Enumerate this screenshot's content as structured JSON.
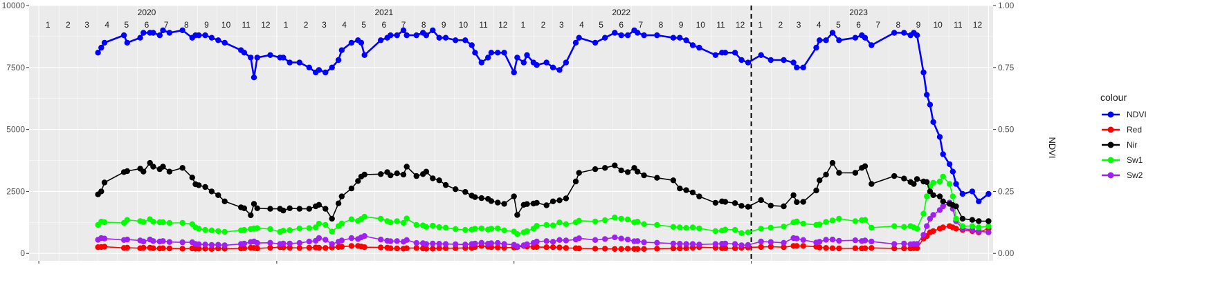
{
  "chart_data": {
    "type": "line",
    "title": "",
    "xlabel": "",
    "ylabel": "",
    "y2label": "NDVI",
    "ylim": [
      -300,
      10000
    ],
    "yticks": [
      0,
      2500,
      5000,
      7500,
      10000
    ],
    "ytick_labels": [
      "0",
      "2500",
      "5000",
      "7500",
      "10000"
    ],
    "y2lim": [
      -0.03,
      1.0
    ],
    "y2ticks": [
      0.0,
      0.25,
      0.5,
      0.75,
      1.0
    ],
    "y2tick_labels": [
      "0.00",
      "0.25",
      "0.50",
      "0.75",
      "1.00"
    ],
    "xlim": [
      "2019-12-17",
      "2024-01-08"
    ],
    "grid": true,
    "background": "#EBEBEB",
    "event_marker": {
      "date": "2023-01-01",
      "style": "dashed"
    },
    "year_labels": [
      {
        "label": "2020",
        "date": "2020-06-15"
      },
      {
        "label": "2021",
        "date": "2021-06-15"
      },
      {
        "label": "2022",
        "date": "2022-06-15"
      },
      {
        "label": "2023",
        "date": "2023-06-15"
      }
    ],
    "month_labels": [
      {
        "label": "1",
        "date": "2020-01-15"
      },
      {
        "label": "2",
        "date": "2020-02-15"
      },
      {
        "label": "3",
        "date": "2020-03-15"
      },
      {
        "label": "4",
        "date": "2020-04-15"
      },
      {
        "label": "5",
        "date": "2020-05-15"
      },
      {
        "label": "6",
        "date": "2020-06-15"
      },
      {
        "label": "7",
        "date": "2020-07-15"
      },
      {
        "label": "8",
        "date": "2020-08-15"
      },
      {
        "label": "9",
        "date": "2020-09-15"
      },
      {
        "label": "10",
        "date": "2020-10-15"
      },
      {
        "label": "11",
        "date": "2020-11-15"
      },
      {
        "label": "12",
        "date": "2020-12-15"
      },
      {
        "label": "1",
        "date": "2021-01-15"
      },
      {
        "label": "2",
        "date": "2021-02-15"
      },
      {
        "label": "3",
        "date": "2021-03-15"
      },
      {
        "label": "4",
        "date": "2021-04-15"
      },
      {
        "label": "5",
        "date": "2021-05-15"
      },
      {
        "label": "6",
        "date": "2021-06-15"
      },
      {
        "label": "7",
        "date": "2021-07-15"
      },
      {
        "label": "8",
        "date": "2021-08-15"
      },
      {
        "label": "9",
        "date": "2021-09-15"
      },
      {
        "label": "10",
        "date": "2021-10-15"
      },
      {
        "label": "11",
        "date": "2021-11-15"
      },
      {
        "label": "12",
        "date": "2021-12-15"
      },
      {
        "label": "1",
        "date": "2022-01-15"
      },
      {
        "label": "2",
        "date": "2022-02-15"
      },
      {
        "label": "3",
        "date": "2022-03-15"
      },
      {
        "label": "4",
        "date": "2022-04-15"
      },
      {
        "label": "5",
        "date": "2022-05-15"
      },
      {
        "label": "6",
        "date": "2022-06-15"
      },
      {
        "label": "7",
        "date": "2022-07-15"
      },
      {
        "label": "8",
        "date": "2022-08-15"
      },
      {
        "label": "9",
        "date": "2022-09-15"
      },
      {
        "label": "10",
        "date": "2022-10-15"
      },
      {
        "label": "11",
        "date": "2022-11-15"
      },
      {
        "label": "12",
        "date": "2022-12-15"
      },
      {
        "label": "1",
        "date": "2023-01-15"
      },
      {
        "label": "2",
        "date": "2023-02-15"
      },
      {
        "label": "3",
        "date": "2023-03-15"
      },
      {
        "label": "4",
        "date": "2023-04-15"
      },
      {
        "label": "5",
        "date": "2023-05-15"
      },
      {
        "label": "6",
        "date": "2023-06-15"
      },
      {
        "label": "7",
        "date": "2023-07-15"
      },
      {
        "label": "8",
        "date": "2023-08-15"
      },
      {
        "label": "9",
        "date": "2023-09-15"
      },
      {
        "label": "10",
        "date": "2023-10-15"
      },
      {
        "label": "11",
        "date": "2023-11-15"
      },
      {
        "label": "12",
        "date": "2023-12-15"
      }
    ],
    "legend": {
      "title": "colour",
      "position": "right",
      "entries": [
        {
          "name": "NDVI",
          "color": "#0000FF"
        },
        {
          "name": "Red",
          "color": "#FF0000"
        },
        {
          "name": "Nir",
          "color": "#000000"
        },
        {
          "name": "Sw1",
          "color": "#00FF00"
        },
        {
          "name": "Sw2",
          "color": "#A020F0"
        }
      ]
    },
    "x": [
      "2020-04-01",
      "2020-04-06",
      "2020-04-11",
      "2020-05-11",
      "2020-05-16",
      "2020-06-05",
      "2020-06-10",
      "2020-06-20",
      "2020-06-25",
      "2020-07-05",
      "2020-07-10",
      "2020-07-20",
      "2020-08-09",
      "2020-08-24",
      "2020-08-29",
      "2020-09-03",
      "2020-09-13",
      "2020-09-23",
      "2020-10-03",
      "2020-10-13",
      "2020-11-07",
      "2020-11-12",
      "2020-11-22",
      "2020-11-27",
      "2020-12-02",
      "2020-12-22",
      "2021-01-06",
      "2021-01-11",
      "2021-01-21",
      "2021-02-05",
      "2021-02-20",
      "2021-03-02",
      "2021-03-07",
      "2021-03-17",
      "2021-03-27",
      "2021-04-06",
      "2021-04-11",
      "2021-04-26",
      "2021-05-06",
      "2021-05-11",
      "2021-05-16",
      "2021-06-10",
      "2021-06-20",
      "2021-06-25",
      "2021-07-05",
      "2021-07-15",
      "2021-07-20",
      "2021-08-04",
      "2021-08-14",
      "2021-08-19",
      "2021-08-29",
      "2021-09-08",
      "2021-09-18",
      "2021-10-03",
      "2021-10-18",
      "2021-10-28",
      "2021-11-02",
      "2021-11-12",
      "2021-11-22",
      "2021-11-27",
      "2021-12-07",
      "2021-12-17",
      "2022-01-01",
      "2022-01-06",
      "2022-01-16",
      "2022-01-21",
      "2022-01-31",
      "2022-02-05",
      "2022-02-20",
      "2022-03-02",
      "2022-03-12",
      "2022-03-22",
      "2022-04-06",
      "2022-04-11",
      "2022-05-06",
      "2022-05-21",
      "2022-06-05",
      "2022-06-15",
      "2022-06-25",
      "2022-07-05",
      "2022-07-10",
      "2022-07-20",
      "2022-08-09",
      "2022-09-03",
      "2022-09-13",
      "2022-09-23",
      "2022-10-03",
      "2022-10-13",
      "2022-11-07",
      "2022-11-17",
      "2022-11-22",
      "2022-12-07",
      "2022-12-17",
      "2022-12-27",
      "2023-01-16",
      "2023-01-31",
      "2023-02-20",
      "2023-03-07",
      "2023-03-12",
      "2023-03-22",
      "2023-04-11",
      "2023-04-16",
      "2023-04-26",
      "2023-05-06",
      "2023-05-16",
      "2023-06-10",
      "2023-06-20",
      "2023-06-25",
      "2023-07-05",
      "2023-08-09",
      "2023-08-24",
      "2023-09-03",
      "2023-09-08",
      "2023-09-13",
      "2023-09-23",
      "2023-09-28",
      "2023-10-03",
      "2023-10-08",
      "2023-10-18",
      "2023-10-23",
      "2023-11-02",
      "2023-11-07",
      "2023-11-12",
      "2023-11-22",
      "2023-12-07",
      "2023-12-17",
      "2024-01-01"
    ],
    "series": [
      {
        "name": "NDVI",
        "axis": "right",
        "color": "#0000FF",
        "values": [
          0.81,
          0.83,
          0.85,
          0.88,
          0.85,
          0.87,
          0.89,
          0.89,
          0.89,
          0.88,
          0.9,
          0.89,
          0.9,
          0.87,
          0.88,
          0.88,
          0.88,
          0.87,
          0.86,
          0.85,
          0.82,
          0.81,
          0.79,
          0.71,
          0.79,
          0.8,
          0.79,
          0.79,
          0.77,
          0.77,
          0.75,
          0.73,
          0.74,
          0.73,
          0.75,
          0.78,
          0.82,
          0.85,
          0.86,
          0.85,
          0.8,
          0.86,
          0.87,
          0.88,
          0.88,
          0.9,
          0.88,
          0.88,
          0.89,
          0.88,
          0.9,
          0.87,
          0.87,
          0.86,
          0.86,
          0.84,
          0.81,
          0.77,
          0.79,
          0.81,
          0.81,
          0.81,
          0.73,
          0.79,
          0.77,
          0.8,
          0.77,
          0.76,
          0.77,
          0.75,
          0.74,
          0.77,
          0.85,
          0.87,
          0.85,
          0.87,
          0.89,
          0.88,
          0.88,
          0.9,
          0.89,
          0.88,
          0.88,
          0.87,
          0.87,
          0.86,
          0.84,
          0.83,
          0.8,
          0.81,
          0.81,
          0.81,
          0.78,
          0.77,
          0.8,
          0.78,
          0.78,
          0.77,
          0.75,
          0.75,
          0.83,
          0.86,
          0.86,
          0.89,
          0.86,
          0.87,
          0.88,
          0.87,
          0.84,
          0.89,
          0.89,
          0.88,
          0.89,
          0.88,
          0.73,
          0.64,
          0.6,
          0.53,
          0.47,
          0.4,
          0.36,
          0.33,
          0.28,
          0.24,
          0.25,
          0.21,
          0.24
        ]
      },
      {
        "name": "Red",
        "axis": "left",
        "color": "#FF0000",
        "values": [
          250,
          260,
          270,
          220,
          230,
          210,
          230,
          230,
          210,
          200,
          210,
          200,
          190,
          200,
          190,
          190,
          190,
          180,
          200,
          190,
          200,
          210,
          230,
          220,
          200,
          230,
          250,
          240,
          230,
          220,
          230,
          240,
          230,
          220,
          240,
          260,
          270,
          300,
          300,
          280,
          250,
          240,
          230,
          210,
          200,
          190,
          210,
          220,
          200,
          190,
          190,
          210,
          210,
          210,
          220,
          220,
          260,
          300,
          270,
          250,
          240,
          230,
          240,
          250,
          300,
          280,
          260,
          260,
          250,
          250,
          240,
          220,
          210,
          200,
          190,
          190,
          180,
          180,
          190,
          180,
          180,
          180,
          190,
          200,
          200,
          210,
          230,
          250,
          230,
          210,
          210,
          210,
          230,
          240,
          260,
          270,
          250,
          300,
          300,
          300,
          270,
          240,
          220,
          210,
          200,
          210,
          200,
          210,
          220,
          200,
          200,
          200,
          210,
          210,
          600,
          700,
          850,
          900,
          1000,
          1050,
          1100,
          1050,
          1000,
          950,
          900,
          850,
          1000
        ]
      },
      {
        "name": "Nir",
        "axis": "left",
        "color": "#000000",
        "values": [
          2380,
          2500,
          2860,
          3280,
          3320,
          3420,
          3300,
          3650,
          3500,
          3400,
          3500,
          3300,
          3450,
          3060,
          2790,
          2750,
          2680,
          2500,
          2350,
          2100,
          1860,
          1820,
          1540,
          2000,
          1820,
          1800,
          1800,
          1730,
          1820,
          1800,
          1800,
          1900,
          1960,
          1800,
          1400,
          2020,
          2300,
          2620,
          2920,
          3100,
          3180,
          3200,
          3280,
          3150,
          3230,
          3180,
          3500,
          3120,
          3200,
          3300,
          3030,
          2950,
          2760,
          2590,
          2480,
          2330,
          2270,
          2230,
          2200,
          2110,
          2050,
          2000,
          2300,
          1550,
          1960,
          1990,
          2010,
          2040,
          1940,
          2100,
          2140,
          2220,
          2900,
          3250,
          3400,
          3450,
          3550,
          3350,
          3280,
          3450,
          3300,
          3150,
          3050,
          2950,
          2620,
          2550,
          2460,
          2300,
          2040,
          2100,
          2080,
          2030,
          1920,
          1880,
          2150,
          1930,
          1900,
          2350,
          2070,
          2080,
          2540,
          2950,
          3180,
          3650,
          3250,
          3250,
          3450,
          3520,
          2800,
          3120,
          3020,
          2880,
          2800,
          3000,
          2900,
          2880,
          2500,
          2350,
          2300,
          2100,
          2000,
          1950,
          1900,
          1400,
          1350,
          1300,
          1300
        ]
      },
      {
        "name": "Sw1",
        "axis": "left",
        "color": "#00FF00",
        "values": [
          1150,
          1280,
          1260,
          1230,
          1350,
          1300,
          1270,
          1380,
          1280,
          1260,
          1260,
          1230,
          1230,
          1180,
          1050,
          1000,
          950,
          930,
          900,
          870,
          930,
          950,
          980,
          1010,
          1020,
          980,
          870,
          920,
          940,
          1010,
          1020,
          1050,
          1200,
          1150,
          880,
          1100,
          1210,
          1380,
          1310,
          1390,
          1480,
          1400,
          1300,
          1250,
          1300,
          1230,
          1410,
          1150,
          1130,
          1070,
          1120,
          1060,
          1040,
          980,
          950,
          960,
          1000,
          1010,
          960,
          1000,
          1010,
          930,
          880,
          780,
          850,
          900,
          1000,
          1110,
          1150,
          1130,
          1250,
          1180,
          1250,
          1320,
          1290,
          1340,
          1450,
          1400,
          1370,
          1250,
          1280,
          1180,
          1150,
          1070,
          1050,
          1030,
          1050,
          1010,
          900,
          920,
          960,
          950,
          820,
          850,
          1000,
          1040,
          1080,
          1250,
          1290,
          1200,
          1150,
          1170,
          1270,
          1330,
          1400,
          1300,
          1340,
          1350,
          1040,
          1100,
          1070,
          1100,
          1050,
          1000,
          1600,
          2300,
          2700,
          2850,
          2900,
          3100,
          2800,
          2300,
          1400,
          1100,
          1100,
          1050,
          1100
        ]
      },
      {
        "name": "Sw2",
        "axis": "left",
        "color": "#A020F0",
        "values": [
          550,
          620,
          600,
          540,
          560,
          520,
          480,
          560,
          500,
          480,
          500,
          460,
          450,
          450,
          380,
          370,
          360,
          340,
          350,
          330,
          380,
          400,
          460,
          480,
          420,
          430,
          380,
          400,
          400,
          420,
          480,
          510,
          620,
          550,
          380,
          470,
          520,
          620,
          580,
          650,
          700,
          560,
          510,
          490,
          500,
          470,
          540,
          420,
          410,
          380,
          400,
          390,
          380,
          370,
          360,
          380,
          400,
          430,
          390,
          410,
          420,
          380,
          350,
          290,
          330,
          370,
          420,
          480,
          500,
          470,
          540,
          520,
          560,
          610,
          540,
          580,
          650,
          600,
          560,
          490,
          500,
          450,
          430,
          400,
          390,
          380,
          380,
          360,
          380,
          390,
          400,
          380,
          330,
          340,
          480,
          460,
          430,
          620,
          600,
          540,
          440,
          470,
          550,
          560,
          510,
          530,
          500,
          520,
          480,
          380,
          400,
          370,
          380,
          380,
          750,
          1100,
          1400,
          1550,
          1750,
          1900,
          2050,
          1800,
          1300,
          1000,
          950,
          900,
          850
        ]
      }
    ]
  }
}
